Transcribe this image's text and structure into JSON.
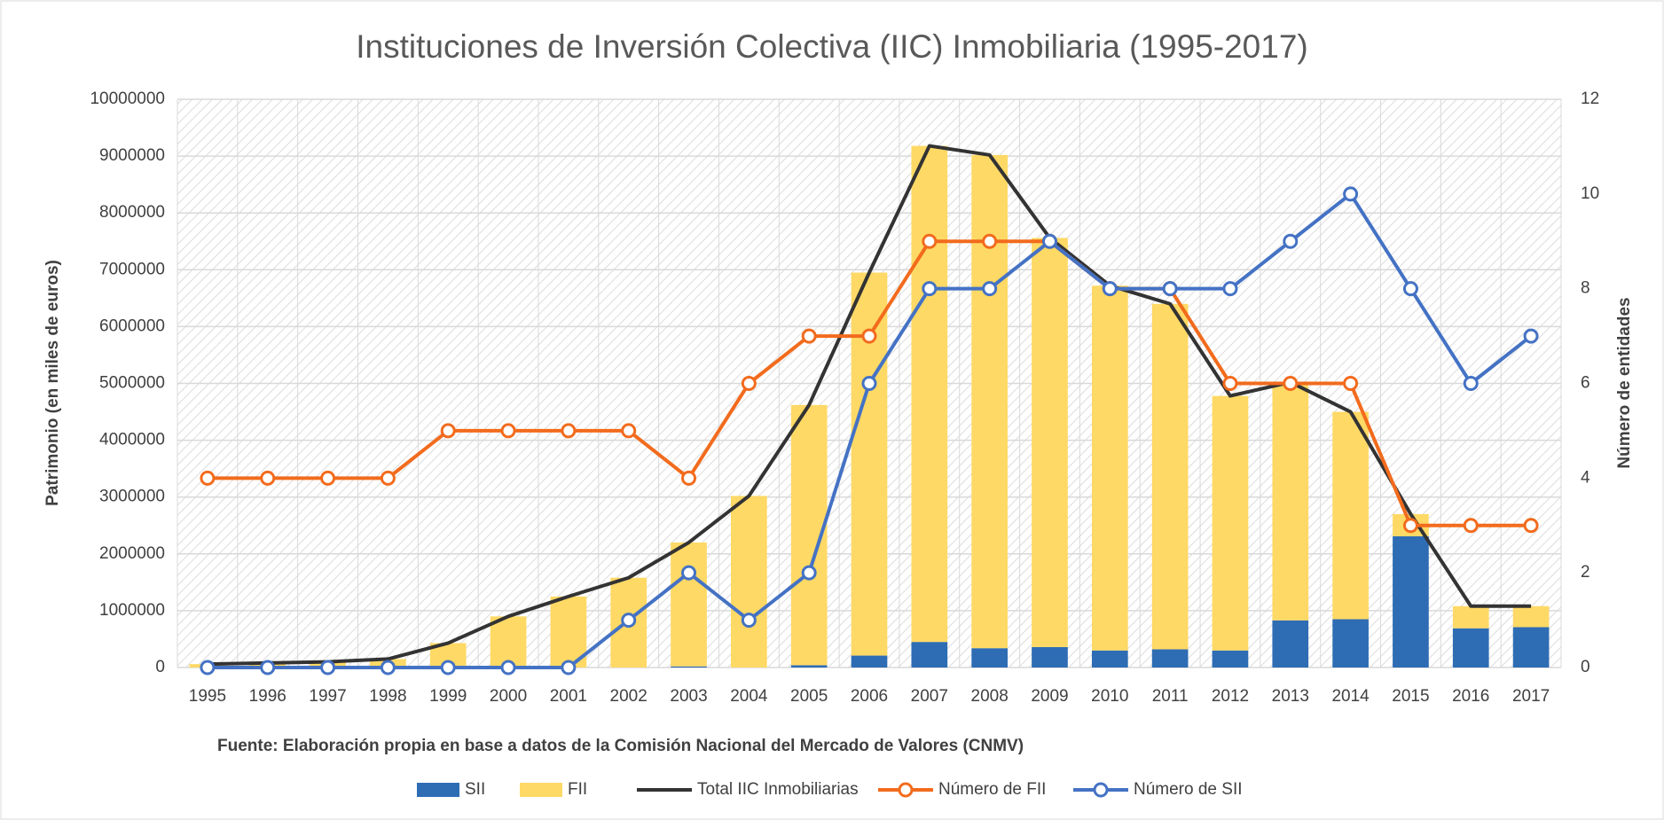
{
  "chart_data": {
    "type": "bar",
    "stacked": true,
    "title": "Instituciones de Inversión Colectiva (IIC) Inmobiliaria (1995-2017)",
    "ylabel": "Patrimonio (en miles de euros)",
    "y2label": "Número de entidades",
    "source": "Fuente: Elaboración propia en base a datos de la Comisión Nacional del Mercado de Valores (CNMV)",
    "categories": [
      "1995",
      "1996",
      "1997",
      "1998",
      "1999",
      "2000",
      "2001",
      "2002",
      "2003",
      "2004",
      "2005",
      "2006",
      "2007",
      "2008",
      "2009",
      "2010",
      "2011",
      "2012",
      "2013",
      "2014",
      "2015",
      "2016",
      "2017"
    ],
    "ylim": [
      0,
      10000000
    ],
    "yticks": [
      0,
      1000000,
      2000000,
      3000000,
      4000000,
      5000000,
      6000000,
      7000000,
      8000000,
      9000000,
      10000000
    ],
    "y2lim": [
      0,
      12
    ],
    "y2ticks": [
      0,
      2,
      4,
      6,
      8,
      10,
      12
    ],
    "grid": true,
    "legend": "bottom",
    "series": [
      {
        "name": "SII",
        "type": "bar",
        "color": "#2e6db4",
        "values": [
          0,
          0,
          0,
          0,
          0,
          0,
          0,
          0,
          20000,
          0,
          40000,
          210000,
          450000,
          340000,
          360000,
          300000,
          320000,
          300000,
          830000,
          850000,
          2310000,
          690000,
          710000
        ]
      },
      {
        "name": "FII",
        "type": "bar",
        "color": "#ffd966",
        "values": [
          60000,
          80000,
          100000,
          150000,
          430000,
          900000,
          1250000,
          1580000,
          2180000,
          3020000,
          4580000,
          6740000,
          8730000,
          8680000,
          7200000,
          6420000,
          6080000,
          4480000,
          4190000,
          3650000,
          390000,
          390000,
          370000
        ]
      },
      {
        "name": "Total IIC Inmobiliarias",
        "type": "line",
        "color": "#333333",
        "values": [
          60000,
          80000,
          100000,
          150000,
          430000,
          900000,
          1250000,
          1580000,
          2200000,
          3020000,
          4620000,
          6950000,
          9180000,
          9020000,
          7560000,
          6720000,
          6400000,
          4780000,
          5020000,
          4500000,
          2700000,
          1080000,
          1080000
        ]
      },
      {
        "name": "Número de FII",
        "type": "line",
        "markers": true,
        "axis": "y2",
        "color": "#f26b1d",
        "values": [
          4,
          4,
          4,
          4,
          5,
          5,
          5,
          5,
          4,
          6,
          7,
          7,
          9,
          9,
          9,
          8,
          8,
          6,
          6,
          6,
          3,
          3,
          3
        ]
      },
      {
        "name": "Número de SII",
        "type": "line",
        "markers": true,
        "axis": "y2",
        "color": "#4472c4",
        "values": [
          0,
          0,
          0,
          0,
          0,
          0,
          0,
          1,
          2,
          1,
          2,
          6,
          8,
          8,
          9,
          8,
          8,
          8,
          9,
          10,
          8,
          6,
          7
        ]
      }
    ]
  }
}
